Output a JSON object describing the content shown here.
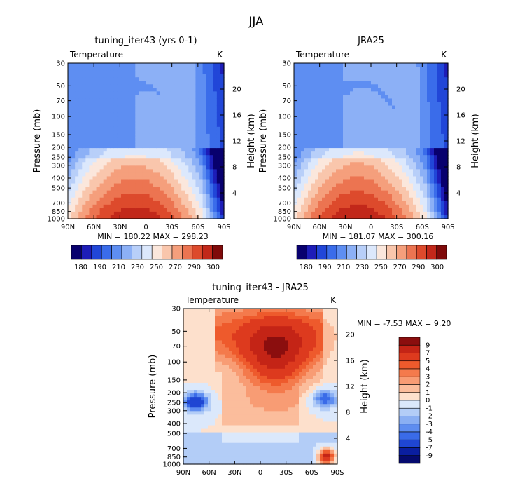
{
  "figure_title": "JJA",
  "units_label": "K",
  "variable_label": "Temperature",
  "chart_data": [
    {
      "type": "heatmap",
      "title": "tuning_iter43 (yrs 0-1)",
      "variable": "Temperature",
      "units": "K",
      "xlabel": "",
      "ylabel": "Pressure (mb)",
      "ylabel_right": "Height (km)",
      "x_ticks": [
        "90N",
        "60N",
        "30N",
        "0",
        "30S",
        "60S",
        "90S"
      ],
      "y_ticks": [
        30,
        50,
        70,
        100,
        150,
        200,
        250,
        300,
        400,
        500,
        700,
        850,
        1000
      ],
      "y_right_ticks": [
        20,
        16,
        12,
        8,
        4
      ],
      "y_scale": "log",
      "ylim": [
        1000,
        30
      ],
      "stats_text": "MIN = 180.22   MAX = 298.23",
      "min": 180.22,
      "max": 298.23,
      "colorbar": {
        "orientation": "horizontal",
        "levels": [
          180,
          190,
          200,
          210,
          220,
          230,
          240,
          250,
          260,
          270,
          280,
          290,
          300
        ],
        "labels": [
          "180",
          "190",
          "210",
          "230",
          "250",
          "270",
          "290",
          "300"
        ],
        "colors": [
          "#08006e",
          "#1d1db8",
          "#2146d8",
          "#3a6cea",
          "#5e8ef2",
          "#8cb0f6",
          "#b8cff9",
          "#dce8fc",
          "#fbe7dc",
          "#f9c6ac",
          "#f59f7c",
          "#ec7451",
          "#dd4a2c",
          "#c2281a",
          "#7f0a0a"
        ]
      }
    },
    {
      "type": "heatmap",
      "title": "JRA25",
      "variable": "Temperature",
      "units": "K",
      "xlabel": "",
      "ylabel": "Pressure (mb)",
      "ylabel_right": "Height (km)",
      "x_ticks": [
        "90N",
        "60N",
        "30N",
        "0",
        "30S",
        "60S",
        "90S"
      ],
      "y_ticks": [
        30,
        50,
        70,
        100,
        150,
        200,
        250,
        300,
        400,
        500,
        700,
        850,
        1000
      ],
      "y_right_ticks": [
        20,
        16,
        12,
        8,
        4
      ],
      "y_scale": "log",
      "ylim": [
        1000,
        30
      ],
      "stats_text": "MIN = 181.07   MAX = 300.16",
      "min": 181.07,
      "max": 300.16,
      "colorbar": {
        "orientation": "horizontal",
        "levels": [
          180,
          190,
          200,
          210,
          220,
          230,
          240,
          250,
          260,
          270,
          280,
          290,
          300
        ],
        "labels": [
          "180",
          "190",
          "210",
          "230",
          "250",
          "270",
          "290",
          "300"
        ],
        "colors": [
          "#08006e",
          "#1d1db8",
          "#2146d8",
          "#3a6cea",
          "#5e8ef2",
          "#8cb0f6",
          "#b8cff9",
          "#dce8fc",
          "#fbe7dc",
          "#f9c6ac",
          "#f59f7c",
          "#ec7451",
          "#dd4a2c",
          "#c2281a",
          "#7f0a0a"
        ]
      }
    },
    {
      "type": "heatmap",
      "title": "tuning_iter43 - JRA25",
      "variable": "Temperature",
      "units": "K",
      "xlabel": "",
      "ylabel": "Pressure (mb)",
      "ylabel_right": "Height (km)",
      "x_ticks": [
        "90N",
        "60N",
        "30N",
        "0",
        "30S",
        "60S",
        "90S"
      ],
      "y_ticks": [
        30,
        50,
        70,
        100,
        150,
        200,
        250,
        300,
        400,
        500,
        700,
        850,
        1000
      ],
      "y_right_ticks": [
        20,
        16,
        12,
        8,
        4
      ],
      "y_scale": "log",
      "ylim": [
        1000,
        30
      ],
      "stats_text": "MIN =   -7.53   MAX =     9.20",
      "min": -7.53,
      "max": 9.2,
      "colorbar": {
        "orientation": "vertical",
        "labels": [
          "9",
          "7",
          "5",
          "4",
          "3",
          "2",
          "1",
          "0",
          "-1",
          "-2",
          "-3",
          "-4",
          "-5",
          "-7",
          "-9"
        ],
        "colors": [
          "#8b0e0e",
          "#c42416",
          "#dd3a1e",
          "#ee5a2c",
          "#f47a4c",
          "#f89c74",
          "#fbbd9c",
          "#fde0cc",
          "#dbe8fb",
          "#b3cdf7",
          "#8aaff3",
          "#5e8df0",
          "#3a6be8",
          "#1f46d3",
          "#0a1ea0",
          "#050a6e"
        ]
      }
    }
  ]
}
